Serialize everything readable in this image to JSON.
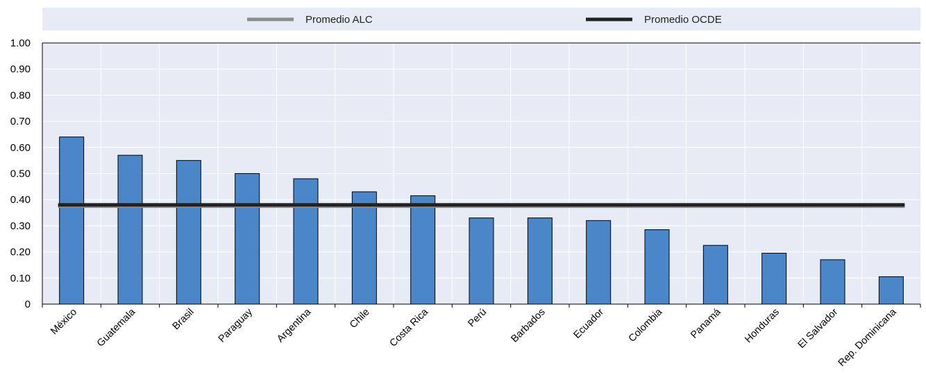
{
  "chart_data": {
    "type": "bar",
    "categories": [
      "México",
      "Guatemala",
      "Brasil",
      "Paraguay",
      "Argentina",
      "Chile",
      "Costa Rica",
      "Perú",
      "Barbados",
      "Ecuador",
      "Colombia",
      "Panamá",
      "Honduras",
      "El Salvador",
      "Rep. Dominicana"
    ],
    "series": [
      {
        "values": [
          0.64,
          0.57,
          0.55,
          0.5,
          0.48,
          0.43,
          0.415,
          0.33,
          0.33,
          0.32,
          0.285,
          0.225,
          0.195,
          0.17,
          0.105
        ]
      }
    ],
    "reference_lines": [
      {
        "name": "Promedio ALC",
        "value": 0.375,
        "color": "#8c8c8c"
      },
      {
        "name": "Promedio OCDE",
        "value": 0.38,
        "color": "#222222"
      }
    ],
    "ylim": [
      0,
      1.0
    ],
    "yticks": [
      "0",
      "0.10",
      "0.20",
      "0.30",
      "0.40",
      "0.50",
      "0.60",
      "0.70",
      "0.80",
      "0.90",
      "1.00"
    ],
    "grid": true,
    "legend_position": "top",
    "colors": {
      "bar": "#4a86c8",
      "plot_bg": "#e6ebf6",
      "legend_bg": "#e6ebf6",
      "grid": "#ffffff"
    }
  }
}
